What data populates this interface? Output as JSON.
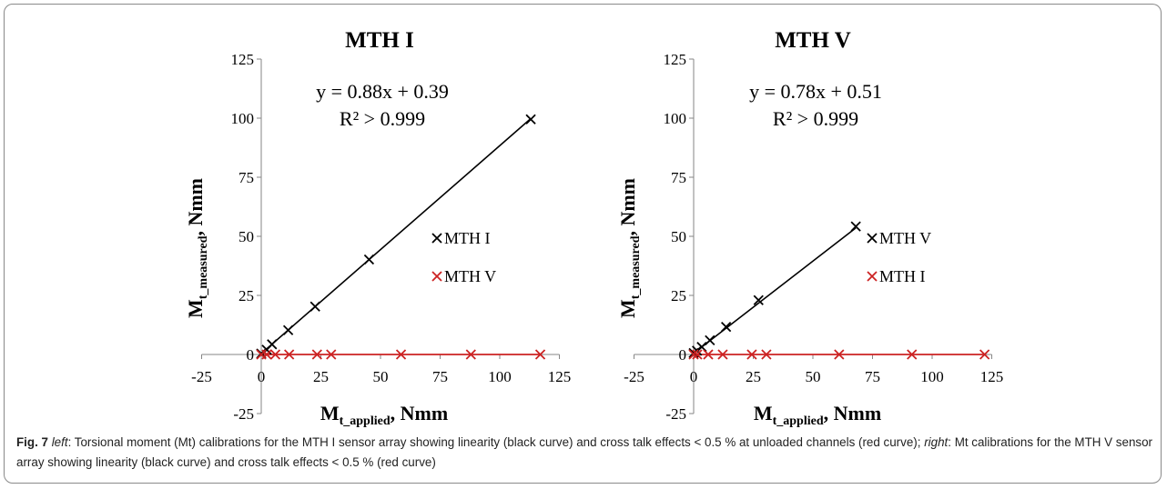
{
  "chart_data": [
    {
      "type": "scatter",
      "title": "MTH I",
      "xlabel": "M_t_applied, Nmm",
      "ylabel": "M_t_measured, Nmm",
      "xlabel_main": "M",
      "xlabel_sub": "t_applied",
      "xlabel_tail": ", Nmm",
      "ylabel_main": "M",
      "ylabel_sub": "t_measured",
      "ylabel_tail": ", Nmm",
      "xlim": [
        -25,
        125
      ],
      "ylim": [
        -25,
        125
      ],
      "xticks": [
        -25,
        0,
        25,
        50,
        75,
        100,
        125
      ],
      "yticks": [
        -25,
        0,
        25,
        50,
        75,
        100,
        125
      ],
      "xtick_labels": [
        "-25",
        "0",
        "25",
        "50",
        "75",
        "100",
        "125"
      ],
      "ytick_labels": [
        "-25",
        "0",
        "25",
        "50",
        "75",
        "100",
        "125"
      ],
      "equation": "y = 0.88x + 0.39",
      "r2": "R² > 0.999",
      "legend_position": "right",
      "series": [
        {
          "name": "MTH I",
          "color": "#000000",
          "marker": "x",
          "x": [
            0,
            2.3,
            4.5,
            11.3,
            22.6,
            45.2,
            113
          ],
          "y": [
            0.4,
            2.0,
            4.3,
            10.3,
            20.3,
            40.2,
            99.5
          ]
        },
        {
          "name": "MTH V",
          "color": "#cc2222",
          "marker": "x",
          "x": [
            0,
            2.3,
            5.9,
            11.7,
            23.4,
            29.3,
            58.6,
            87.9,
            117
          ],
          "y": [
            0,
            0,
            0,
            0,
            0,
            0,
            0,
            0,
            0
          ]
        }
      ],
      "fit_lines": [
        {
          "color": "#000000",
          "x": [
            0,
            113
          ],
          "y": [
            0.39,
            99.8
          ]
        },
        {
          "color": "#cc2222",
          "x": [
            0,
            117
          ],
          "y": [
            0,
            0
          ]
        }
      ]
    },
    {
      "type": "scatter",
      "title": "MTH V",
      "xlabel": "M_t_applied, Nmm",
      "ylabel": "M_t_measured, Nmm",
      "xlabel_main": "M",
      "xlabel_sub": "t_applied",
      "xlabel_tail": ", Nmm",
      "ylabel_main": "M",
      "ylabel_sub": "t_measured",
      "ylabel_tail": ", Nmm",
      "xlim": [
        -25,
        125
      ],
      "ylim": [
        -25,
        125
      ],
      "xticks": [
        -25,
        0,
        25,
        50,
        75,
        100,
        125
      ],
      "yticks": [
        -25,
        0,
        25,
        50,
        75,
        100,
        125
      ],
      "xtick_labels": [
        "-25",
        "0",
        "25",
        "50",
        "75",
        "100",
        "125"
      ],
      "ytick_labels": [
        "-25",
        "0",
        "25",
        "50",
        "75",
        "100",
        "125"
      ],
      "equation": "y = 0.78x + 0.51",
      "r2": "R² > 0.999",
      "legend_position": "right",
      "series": [
        {
          "name": "MTH V",
          "color": "#000000",
          "marker": "x",
          "x": [
            0,
            1.4,
            3.4,
            6.8,
            13.6,
            27.2,
            68
          ],
          "y": [
            0.6,
            1.6,
            3.2,
            6.0,
            11.7,
            23.0,
            54.2
          ]
        },
        {
          "name": "MTH I",
          "color": "#cc2222",
          "marker": "x",
          "x": [
            0,
            1.5,
            6.1,
            12.2,
            24.4,
            30.5,
            61,
            91.5,
            122
          ],
          "y": [
            0,
            0,
            0,
            0,
            0,
            0,
            0,
            0,
            0
          ]
        }
      ],
      "fit_lines": [
        {
          "color": "#000000",
          "x": [
            0,
            68
          ],
          "y": [
            0.51,
            53.55
          ]
        },
        {
          "color": "#cc2222",
          "x": [
            0,
            122
          ],
          "y": [
            0,
            0
          ]
        }
      ]
    }
  ],
  "caption": {
    "fig_label": "Fig. 7",
    "left_word": "left",
    "part1": ": Torsional moment (Mt) calibrations for the MTH I sensor array showing linearity (black curve) and cross talk effects < 0.5 % at unloaded channels (red curve); ",
    "right_word": "right",
    "part2": ": Mt calibrations for the MTH V sensor array showing linearity (black curve) and cross talk effects < 0.5 % (red curve)"
  }
}
